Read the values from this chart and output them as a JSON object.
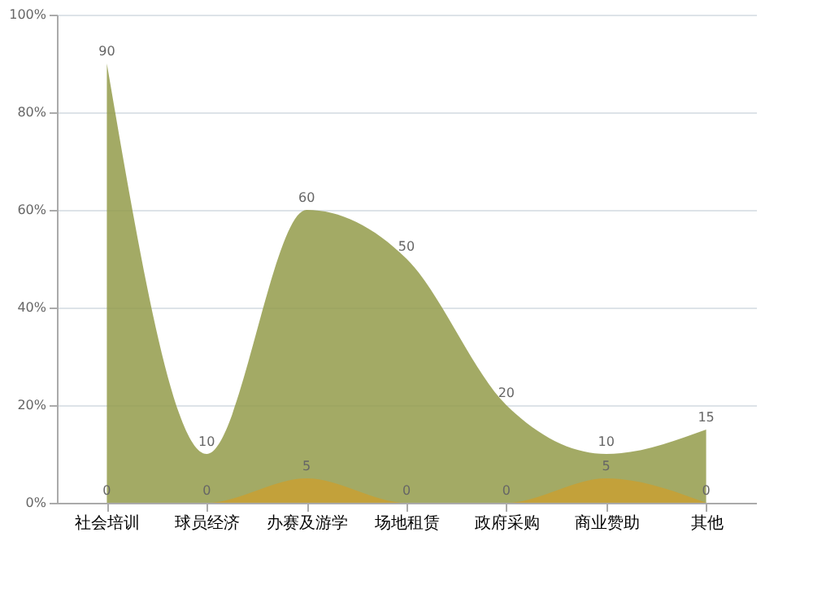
{
  "chart_data": {
    "type": "area",
    "categories": [
      "社会培训",
      "球员经济",
      "办赛及游学",
      "场地租赁",
      "政府采购",
      "商业赞助",
      "其他"
    ],
    "series": [
      {
        "color": "#939b4a",
        "values": [
          90,
          10,
          60,
          50,
          20,
          10,
          15
        ]
      },
      {
        "color": "#c9a032",
        "values": [
          0,
          0,
          5,
          0,
          0,
          5,
          0
        ]
      }
    ],
    "ylim": [
      0,
      100
    ],
    "yticks": [
      {
        "value": 0,
        "label": "0%"
      },
      {
        "value": 20,
        "label": "20%"
      },
      {
        "value": 40,
        "label": "40%"
      },
      {
        "value": 60,
        "label": "60%"
      },
      {
        "value": 80,
        "label": "80%"
      },
      {
        "value": 100,
        "label": "100%"
      }
    ],
    "grid": "y",
    "data_labels": true
  }
}
